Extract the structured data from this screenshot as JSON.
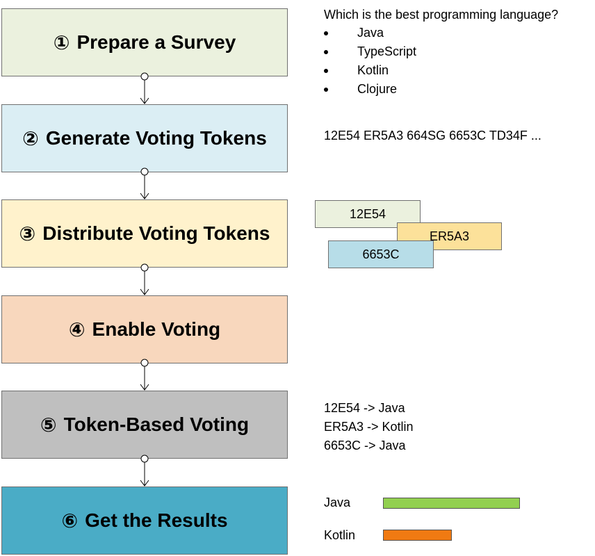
{
  "steps": [
    {
      "num": "①",
      "label": "Prepare a Survey",
      "color": "#ebf1de"
    },
    {
      "num": "②",
      "label": "Generate Voting Tokens",
      "color": "#dbeef4"
    },
    {
      "num": "③",
      "label": "Distribute Voting Tokens",
      "color": "#fff2cc"
    },
    {
      "num": "④",
      "label": "Enable Voting",
      "color": "#f8d7bd"
    },
    {
      "num": "⑤",
      "label": "Token-Based Voting",
      "color": "#bfbfbf"
    },
    {
      "num": "⑥",
      "label": "Get the Results",
      "color": "#4aacc6"
    }
  ],
  "survey": {
    "question": "Which is the best programming language?",
    "options": [
      "Java",
      "TypeScript",
      "Kotlin",
      "Clojure"
    ]
  },
  "token_list": "12E54 ER5A3 664SG 6653C TD34F ...",
  "token_cards": [
    {
      "token": "12E54",
      "color": "#ebf1de"
    },
    {
      "token": "ER5A3",
      "color": "#fce19a"
    },
    {
      "token": "6653C",
      "color": "#b7dde8"
    }
  ],
  "votes": [
    "12E54 -> Java",
    "ER5A3 -> Kotlin",
    "6653C -> Java"
  ],
  "results": [
    {
      "label": "Java",
      "count": 2,
      "color": "#92d050"
    },
    {
      "label": "Kotlin",
      "count": 1,
      "color": "#f07a12"
    }
  ]
}
